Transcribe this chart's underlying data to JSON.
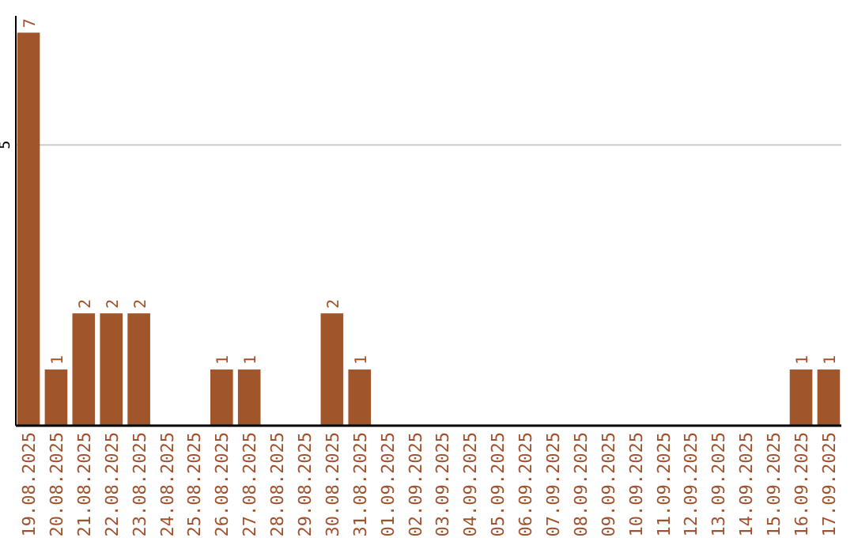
{
  "chart_data": {
    "type": "bar",
    "categories": [
      "19.08.2025",
      "20.08.2025",
      "21.08.2025",
      "22.08.2025",
      "23.08.2025",
      "24.08.2025",
      "25.08.2025",
      "26.08.2025",
      "27.08.2025",
      "28.08.2025",
      "29.08.2025",
      "30.08.2025",
      "31.08.2025",
      "01.09.2025",
      "02.09.2025",
      "03.09.2025",
      "04.09.2025",
      "05.09.2025",
      "06.09.2025",
      "07.09.2025",
      "08.09.2025",
      "09.09.2025",
      "10.09.2025",
      "11.09.2025",
      "12.09.2025",
      "13.09.2025",
      "14.09.2025",
      "15.09.2025",
      "16.09.2025",
      "17.09.2025"
    ],
    "values": [
      7,
      1,
      2,
      2,
      2,
      0,
      0,
      1,
      1,
      0,
      0,
      2,
      1,
      0,
      0,
      0,
      0,
      0,
      0,
      0,
      0,
      0,
      0,
      0,
      0,
      0,
      0,
      0,
      1,
      1
    ],
    "value_labels": [
      "7",
      "1",
      "2",
      "2",
      "2",
      null,
      null,
      "1",
      "1",
      null,
      null,
      "2",
      "1",
      null,
      null,
      null,
      null,
      null,
      null,
      null,
      null,
      null,
      null,
      null,
      null,
      null,
      null,
      null,
      "1",
      "1"
    ],
    "color": "#a0562a",
    "ylim": [
      0,
      7.3
    ],
    "yticks": [
      5
    ],
    "grid": "y"
  }
}
